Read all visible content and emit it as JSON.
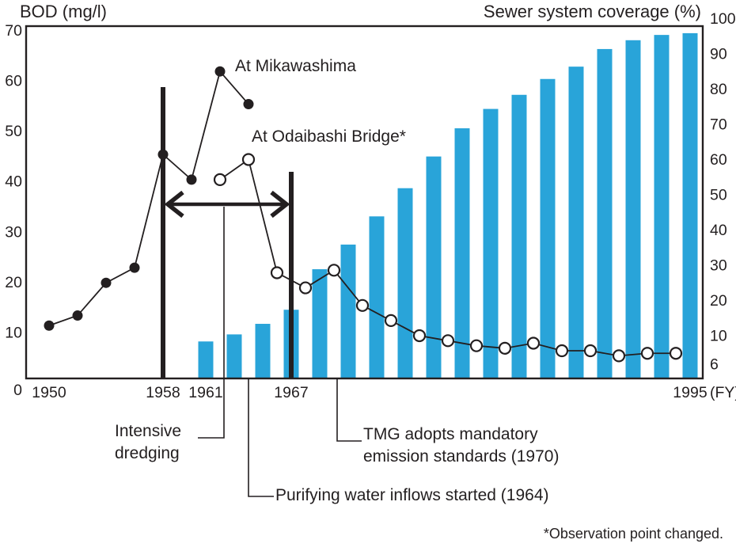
{
  "colors": {
    "bar": "#29a4d9",
    "ink": "#231f20",
    "background": "#ffffff"
  },
  "chart_data": {
    "type": "mixed",
    "title": "",
    "grid": false,
    "legend_position": "inline-annotations",
    "left_axis": {
      "label": "BOD (mg/l)",
      "min": 0,
      "max": 70,
      "ticks": [
        70,
        60,
        50,
        40,
        30,
        20,
        10,
        0
      ]
    },
    "right_axis": {
      "label": "Sewer system coverage (%)",
      "min": 0,
      "max": 100,
      "ticks": [
        100,
        90,
        80,
        70,
        60,
        50,
        40,
        30,
        20,
        10,
        6
      ]
    },
    "x_axis": {
      "tick_years": [
        1950,
        1958,
        1961,
        1967,
        1995
      ],
      "unit_label": "(FY)",
      "range": [
        1948.4,
        1995.9
      ]
    },
    "series": [
      {
        "name": "At Mikawashima",
        "type": "line",
        "marker": "filled",
        "axis": "left",
        "x": [
          1950,
          1952,
          1954,
          1956,
          1958,
          1960,
          1962,
          1964
        ],
        "y": [
          10.5,
          12.5,
          19,
          22,
          44.5,
          39.5,
          61,
          54.5
        ]
      },
      {
        "name": "At Odaibashi Bridge*",
        "type": "line",
        "marker": "open",
        "axis": "left",
        "x": [
          1962,
          1964,
          1966,
          1968,
          1970,
          1972,
          1974,
          1976,
          1978,
          1980,
          1982,
          1984,
          1986,
          1988,
          1990,
          1992,
          1994
        ],
        "y": [
          39.5,
          43.5,
          21,
          18,
          21.5,
          14.5,
          11.5,
          8.5,
          7.5,
          6.5,
          6,
          7,
          5.5,
          5.5,
          4.5,
          5,
          5
        ]
      },
      {
        "name": "Sewer system coverage",
        "type": "bar",
        "marker": "none",
        "axis": "right",
        "x": [
          1961,
          1963,
          1965,
          1967,
          1969,
          1971,
          1973,
          1975,
          1977,
          1979,
          1981,
          1983,
          1985,
          1987,
          1989,
          1991,
          1993,
          1995
        ],
        "y": [
          10.5,
          12.5,
          15.5,
          19.5,
          31,
          38,
          46,
          54,
          63,
          71,
          76.5,
          80.5,
          85,
          88.5,
          93.5,
          96,
          97.5,
          98
        ]
      }
    ],
    "events": [
      {
        "type": "vline",
        "year": 1958
      },
      {
        "type": "vline",
        "year": 1967
      },
      {
        "type": "span_arrow",
        "from": 1958,
        "to": 1967
      }
    ],
    "annotations": {
      "intensive": "Intensive\ndredging",
      "purifying": "Purifying water inflows started (1964)",
      "tmg": "TMG adopts mandatory\nemission standards (1970)",
      "footnote": "*Observation point changed."
    }
  }
}
